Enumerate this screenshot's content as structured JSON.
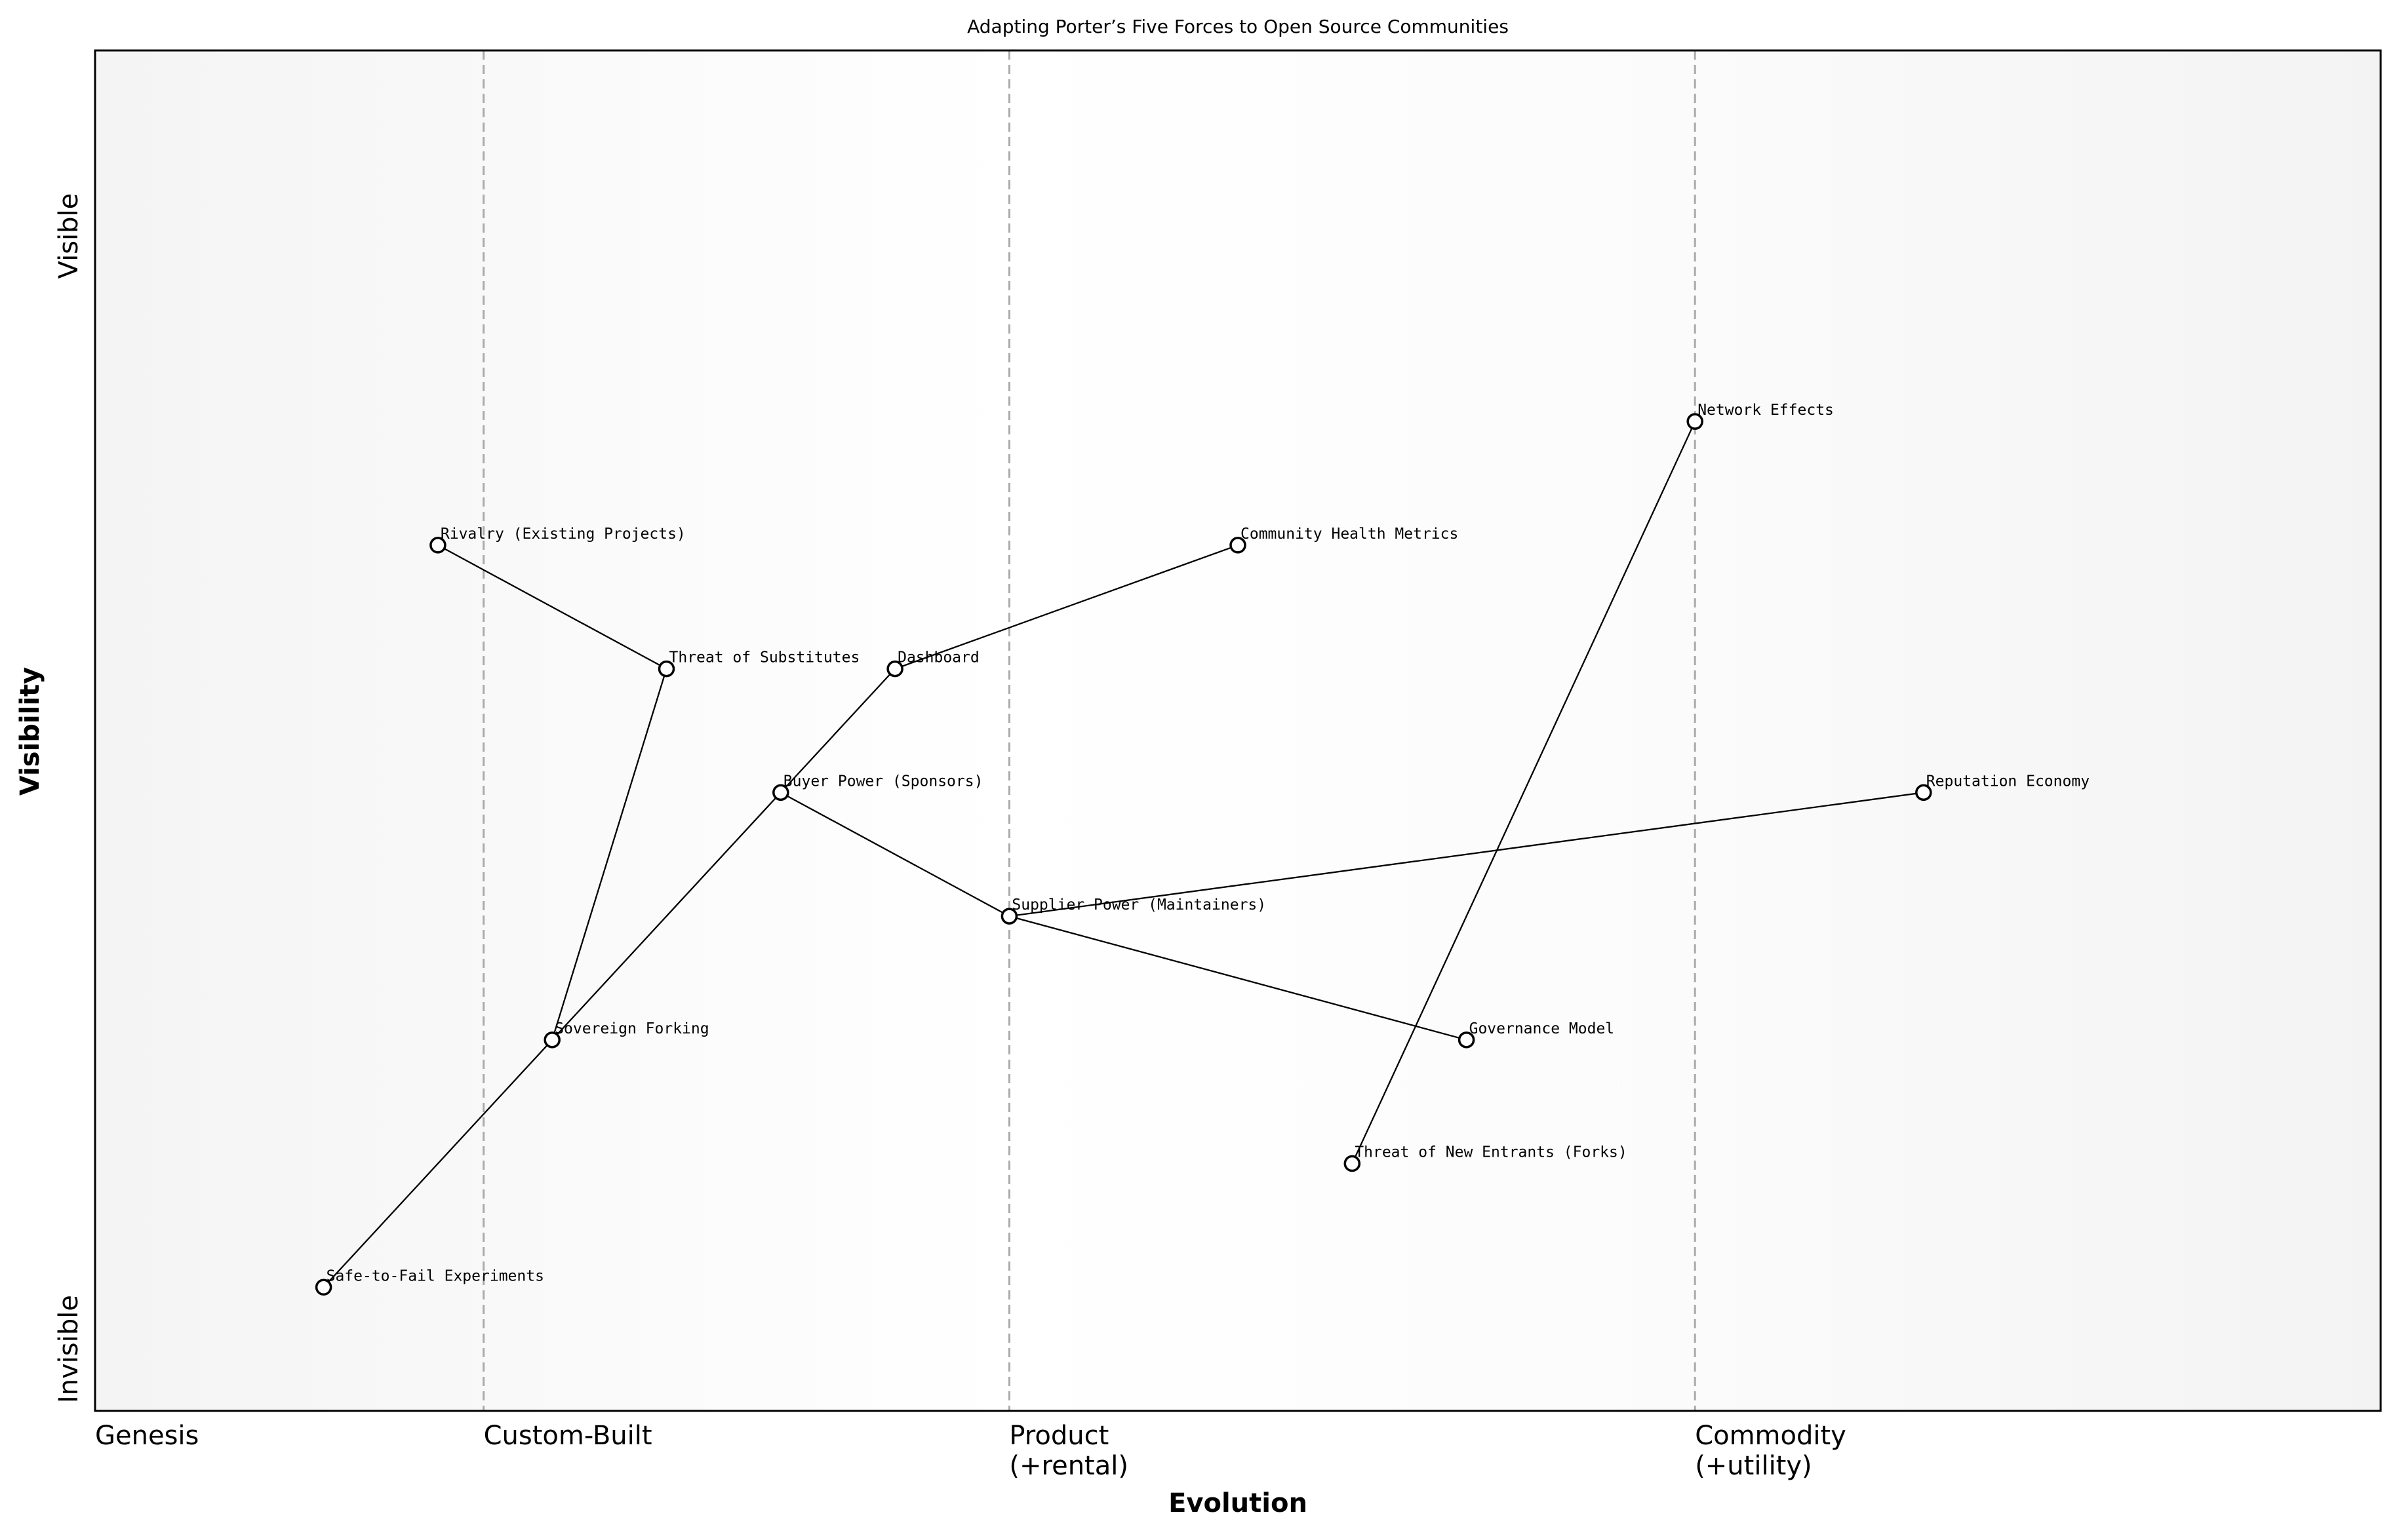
{
  "chart_data": {
    "type": "wardley",
    "title": "Adapting Porter’s Five Forces to Open Source Communities",
    "x_label": "Evolution",
    "y_label": "Visibility",
    "xlim": [
      0,
      1
    ],
    "ylim": [
      0,
      1.1
    ],
    "xticks": [
      {
        "value": 0,
        "label": "Genesis"
      },
      {
        "value": 0.17,
        "label": "Custom-Built"
      },
      {
        "value": 0.4,
        "label": "Product\n(+rental)"
      },
      {
        "value": 0.7,
        "label": "Commodity\n(+utility)"
      }
    ],
    "yticks": [
      {
        "value": 0.05,
        "label": "Invisible"
      },
      {
        "value": 0.95,
        "label": "Visible"
      }
    ],
    "grid": true,
    "color": "#000000",
    "nodes": [
      {
        "name": "Safe-to-Fail Experiments",
        "x": 0.1,
        "y": 0.1
      },
      {
        "name": "Rivalry (Existing Projects)",
        "x": 0.15,
        "y": 0.7
      },
      {
        "name": "Sovereign Forking",
        "x": 0.2,
        "y": 0.3
      },
      {
        "name": "Threat of Substitutes",
        "x": 0.25,
        "y": 0.6
      },
      {
        "name": "Buyer Power (Sponsors)",
        "x": 0.3,
        "y": 0.5
      },
      {
        "name": "Dashboard",
        "x": 0.35,
        "y": 0.6
      },
      {
        "name": "Supplier Power (Maintainers)",
        "x": 0.4,
        "y": 0.4
      },
      {
        "name": "Community Health Metrics",
        "x": 0.5,
        "y": 0.7
      },
      {
        "name": "Threat of New Entrants (Forks)",
        "x": 0.55,
        "y": 0.2
      },
      {
        "name": "Governance Model",
        "x": 0.6,
        "y": 0.3
      },
      {
        "name": "Network Effects",
        "x": 0.7,
        "y": 0.8
      },
      {
        "name": "Reputation Economy",
        "x": 0.8,
        "y": 0.5
      }
    ],
    "links": [
      [
        "Rivalry (Existing Projects)",
        "Threat of Substitutes"
      ],
      [
        "Threat of Substitutes",
        "Sovereign Forking"
      ],
      [
        "Safe-to-Fail Experiments",
        "Sovereign Forking"
      ],
      [
        "Sovereign Forking",
        "Buyer Power (Sponsors)"
      ],
      [
        "Buyer Power (Sponsors)",
        "Dashboard"
      ],
      [
        "Dashboard",
        "Community Health Metrics"
      ],
      [
        "Buyer Power (Sponsors)",
        "Supplier Power (Maintainers)"
      ],
      [
        "Supplier Power (Maintainers)",
        "Reputation Economy"
      ],
      [
        "Supplier Power (Maintainers)",
        "Governance Model"
      ],
      [
        "Network Effects",
        "Threat of New Entrants (Forks)"
      ]
    ]
  }
}
